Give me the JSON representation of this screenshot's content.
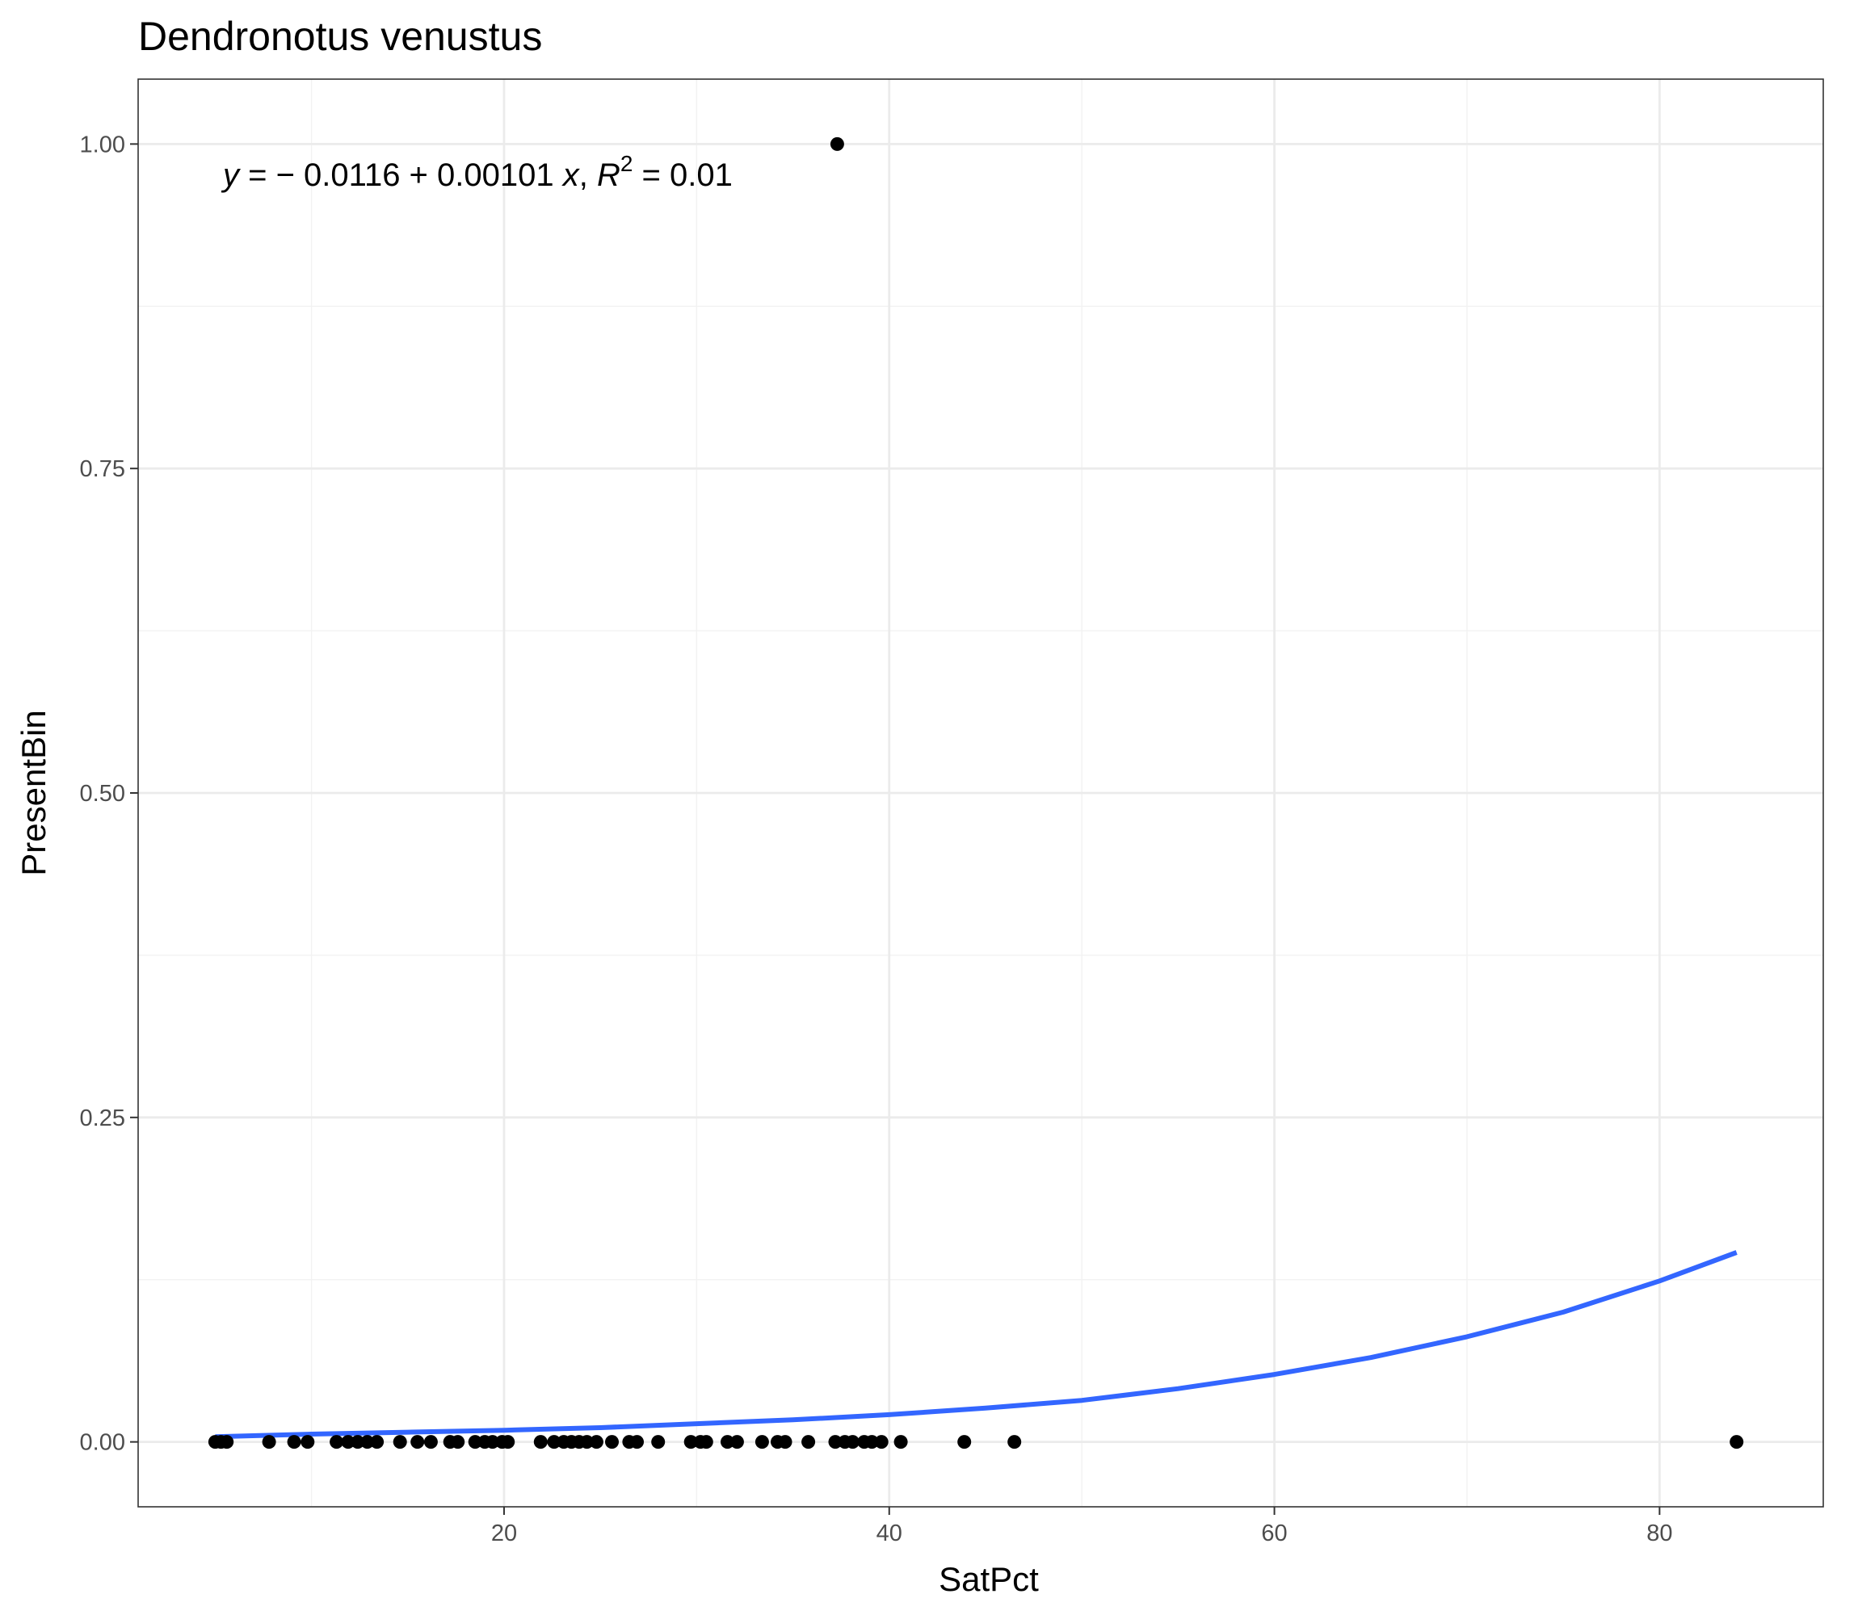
{
  "chart_data": {
    "type": "scatter",
    "title": "Dendronotus venustus",
    "xlabel": "SatPct",
    "ylabel": "PresentBin",
    "xlim": [
      1.0,
      88.5
    ],
    "ylim": [
      -0.05,
      1.05
    ],
    "xticks": [
      20,
      40,
      60,
      80
    ],
    "xtick_labels": [
      "20",
      "40",
      "60",
      "80"
    ],
    "yticks": [
      0,
      0.25,
      0.5,
      0.75,
      1.0
    ],
    "ytick_labels": [
      "0.00",
      "0.25",
      "0.50",
      "0.75",
      "1.00"
    ],
    "grid": true,
    "theme": "bw",
    "equation": {
      "lhs": "y",
      "rhs": " = − 0.0116 + 0.00101 ",
      "xvar": "x",
      "sep": ",  ",
      "r2_var": "R",
      "r2_exp": "2",
      "r2_rhs": " = 0.01"
    },
    "colors": {
      "points": "#000000",
      "fit_line": "#3366FF"
    },
    "series": [
      {
        "type": "scatter",
        "x": [
          5.0,
          5.3,
          5.6,
          7.8,
          9.1,
          9.8,
          11.3,
          11.9,
          12.4,
          12.9,
          13.4,
          14.6,
          15.5,
          16.2,
          17.2,
          17.6,
          18.5,
          19.0,
          19.4,
          19.9,
          20.2,
          21.9,
          22.6,
          23.1,
          23.5,
          23.9,
          24.3,
          24.8,
          25.6,
          26.5,
          26.9,
          28.0,
          29.7,
          30.2,
          30.5,
          31.6,
          32.1,
          33.4,
          34.2,
          34.6,
          35.8,
          37.2,
          37.7,
          38.1,
          38.7,
          39.1,
          39.6,
          40.6,
          43.9,
          46.5,
          37.3,
          84.0
        ],
        "y": [
          0,
          0,
          0,
          0,
          0,
          0,
          0,
          0,
          0,
          0,
          0,
          0,
          0,
          0,
          0,
          0,
          0,
          0,
          0,
          0,
          0,
          0,
          0,
          0,
          0,
          0,
          0,
          0,
          0,
          0,
          0,
          0,
          0,
          0,
          0,
          0,
          0,
          0,
          0,
          0,
          0,
          0,
          0,
          0,
          0,
          0,
          0,
          0,
          0,
          0,
          1,
          0
        ]
      },
      {
        "type": "line",
        "x": [
          5,
          10,
          15,
          20,
          25,
          30,
          35,
          40,
          45,
          50,
          55,
          60,
          65,
          70,
          75,
          80,
          84
        ],
        "y": [
          0.004,
          0.006,
          0.0075,
          0.009,
          0.011,
          0.014,
          0.017,
          0.021,
          0.026,
          0.032,
          0.041,
          0.052,
          0.065,
          0.081,
          0.1,
          0.124,
          0.146
        ]
      }
    ]
  }
}
